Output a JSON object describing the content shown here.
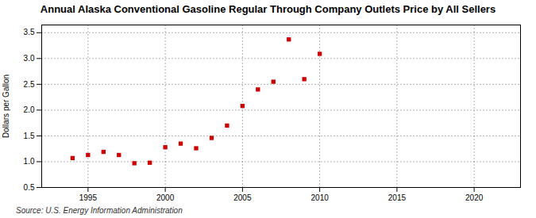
{
  "chart_data": {
    "type": "scatter",
    "title": "Annual Alaska Conventional Gasoline Regular Through Company Outlets Price by All Sellers",
    "ylabel": "Dollars per Gallon",
    "source": "Source: U.S. Energy Information Administration",
    "x": [
      1994,
      1995,
      1996,
      1997,
      1998,
      1999,
      2000,
      2001,
      2002,
      2003,
      2004,
      2005,
      2006,
      2007,
      2008,
      2009,
      2010
    ],
    "values": [
      1.07,
      1.13,
      1.19,
      1.13,
      0.97,
      0.98,
      1.28,
      1.35,
      1.26,
      1.46,
      1.7,
      2.08,
      2.4,
      2.55,
      3.37,
      2.6,
      3.09
    ],
    "color": "#cc0000",
    "marker": "square",
    "xlim": [
      1992,
      2023
    ],
    "xticks": [
      1995,
      2000,
      2005,
      2010,
      2015,
      2020
    ],
    "ylim": [
      0.5,
      3.65
    ],
    "yticks": [
      0.5,
      {
        "value": 1.0,
        "label": "1.0"
      },
      1.5,
      {
        "value": 2.0,
        "label": "2.0"
      },
      2.5,
      {
        "value": 3.0,
        "label": "3.0"
      },
      3.5
    ],
    "grid": true
  }
}
